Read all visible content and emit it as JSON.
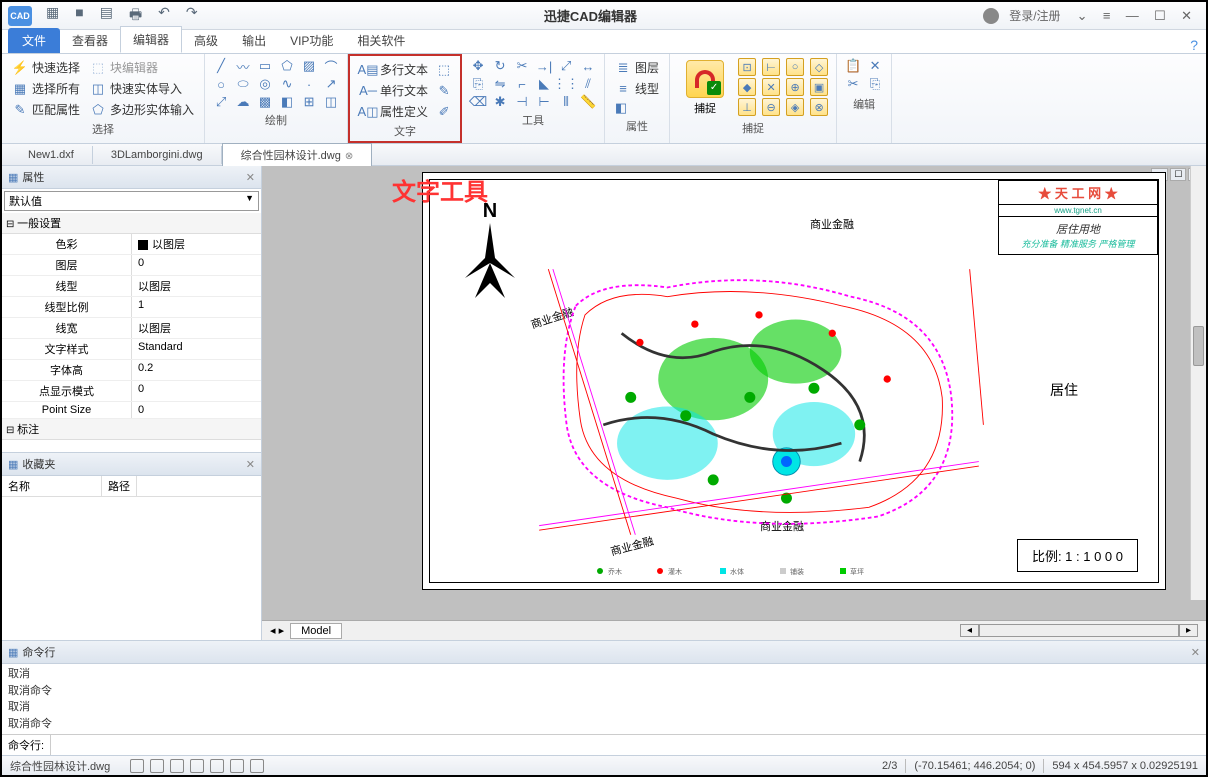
{
  "app": {
    "title": "迅捷CAD编辑器",
    "logo": "CAD",
    "login": "登录/注册"
  },
  "quickbar": [
    "▦",
    "■",
    "▤",
    "🖶",
    "↶",
    "↷"
  ],
  "winbtns": [
    "⌄",
    "≡",
    "—",
    "☐",
    "✕"
  ],
  "menu": {
    "file": "文件",
    "tabs": [
      "查看器",
      "编辑器",
      "高级",
      "输出",
      "VIP功能",
      "相关软件"
    ],
    "active": 1
  },
  "ribbon": {
    "select": {
      "label": "选择",
      "items": [
        "快速选择",
        "块编辑器",
        "选择所有",
        "快速实体导入",
        "匹配属性",
        "多边形实体输入"
      ]
    },
    "draw": {
      "label": "绘制"
    },
    "text": {
      "label": "文字",
      "items": [
        "多行文本",
        "单行文本",
        "属性定义"
      ]
    },
    "tool": {
      "label": "工具"
    },
    "attr": {
      "label": "属性",
      "items": [
        "图层",
        "线型"
      ]
    },
    "snap": {
      "label": "捕捉",
      "btn": "捕捉"
    },
    "edit": {
      "label": "编辑"
    }
  },
  "doctabs": [
    {
      "name": "New1.dxf",
      "active": false
    },
    {
      "name": "3DLamborgini.dwg",
      "active": false
    },
    {
      "name": "综合性园林设计.dwg",
      "active": true
    }
  ],
  "annotation": "文字工具",
  "props": {
    "panel_title": "属性",
    "dropdown": "默认值",
    "section1": "一般设置",
    "rows": [
      {
        "name": "色彩",
        "val": "以图层",
        "sq": true
      },
      {
        "name": "图层",
        "val": "0"
      },
      {
        "name": "线型",
        "val": "以图层"
      },
      {
        "name": "线型比例",
        "val": "1"
      },
      {
        "name": "线宽",
        "val": "以图层"
      },
      {
        "name": "文字样式",
        "val": "Standard"
      },
      {
        "name": "字体高",
        "val": "0.2"
      },
      {
        "name": "点显示模式",
        "val": "0"
      },
      {
        "name": "Point Size",
        "val": "0"
      }
    ],
    "section2": "标注"
  },
  "fav": {
    "title": "收藏夹",
    "cols": [
      "名称",
      "路径"
    ]
  },
  "drawing": {
    "compass_n": "N",
    "legend_title": "★ 天 工 网 ★",
    "legend_url": "www.tgnet.cn",
    "legend_body": "居住用地",
    "scale": "比例:  1 : 1 0 0 0",
    "labels": {
      "commerce1": "商业金融",
      "commerce2": "商业金融",
      "commerce3": "商业金融",
      "residence": "居住"
    }
  },
  "model_tab": "Model",
  "cmd": {
    "title": "命令行",
    "history": [
      "取消",
      "取消命令",
      "取消",
      "取消命令"
    ],
    "prompt": "命令行:"
  },
  "status": {
    "file": "综合性园林设计.dwg",
    "page": "2/3",
    "coords": "(-70.15461; 446.2054; 0)",
    "dims": "594 x 454.5957 x 0.02925191"
  },
  "colors": {
    "annotation": "#ff3333",
    "highlight_border": "#c4302b",
    "magenta": "#ff00ff",
    "green": "#00cc00",
    "cyan": "#00e5e5",
    "red": "#ff0000"
  }
}
